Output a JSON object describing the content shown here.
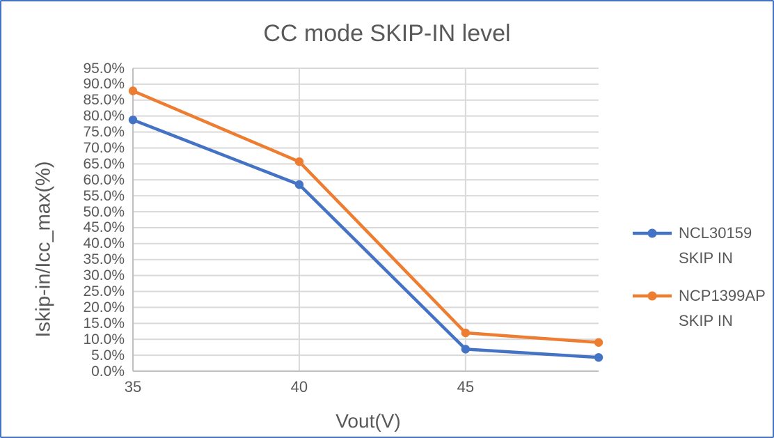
{
  "chart": {
    "title": "CC mode SKIP-IN level",
    "x_axis_title": "Vout(V)",
    "y_axis_title": "Iskip-in/Icc_max(%)"
  },
  "chart_data": {
    "type": "line",
    "title": "CC mode SKIP-IN level",
    "xlabel": "Vout(V)",
    "ylabel": "Iskip-in/Icc_max(%)",
    "grid": true,
    "legend_position": "right",
    "x": [
      35,
      40,
      45,
      49
    ],
    "series": [
      {
        "name": "NCL30159 SKIP IN",
        "legend_lines": [
          "NCL30159",
          "SKIP IN"
        ],
        "color": "#4472C4",
        "values": [
          78.8,
          58.5,
          6.9,
          4.3
        ]
      },
      {
        "name": "NCP1399AP SKIP IN",
        "legend_lines": [
          "NCP1399AP",
          "SKIP IN"
        ],
        "color": "#ED7D31",
        "values": [
          87.9,
          65.7,
          12.0,
          9.0
        ]
      }
    ],
    "x_axis": {
      "min": 35,
      "max": 49,
      "tick_values": [
        35,
        40,
        45
      ],
      "tick_labels": [
        "35",
        "40",
        "45"
      ]
    },
    "y_axis": {
      "min": 0,
      "max": 95,
      "step": 5,
      "tick_values": [
        0,
        5,
        10,
        15,
        20,
        25,
        30,
        35,
        40,
        45,
        50,
        55,
        60,
        65,
        70,
        75,
        80,
        85,
        90,
        95
      ],
      "tick_labels": [
        "0.0%",
        "5.0%",
        "10.0%",
        "15.0%",
        "20.0%",
        "25.0%",
        "30.0%",
        "35.0%",
        "40.0%",
        "45.0%",
        "50.0%",
        "55.0%",
        "60.0%",
        "65.0%",
        "70.0%",
        "75.0%",
        "80.0%",
        "85.0%",
        "90.0%",
        "95.0%"
      ]
    },
    "colors": {
      "series_blue": "#4472C4",
      "series_orange": "#ED7D31",
      "gridline": "#D9D9D9",
      "axis_line": "#BFBFBF",
      "text": "#595959",
      "border": "#4472C4",
      "background": "#FFFFFF"
    }
  }
}
